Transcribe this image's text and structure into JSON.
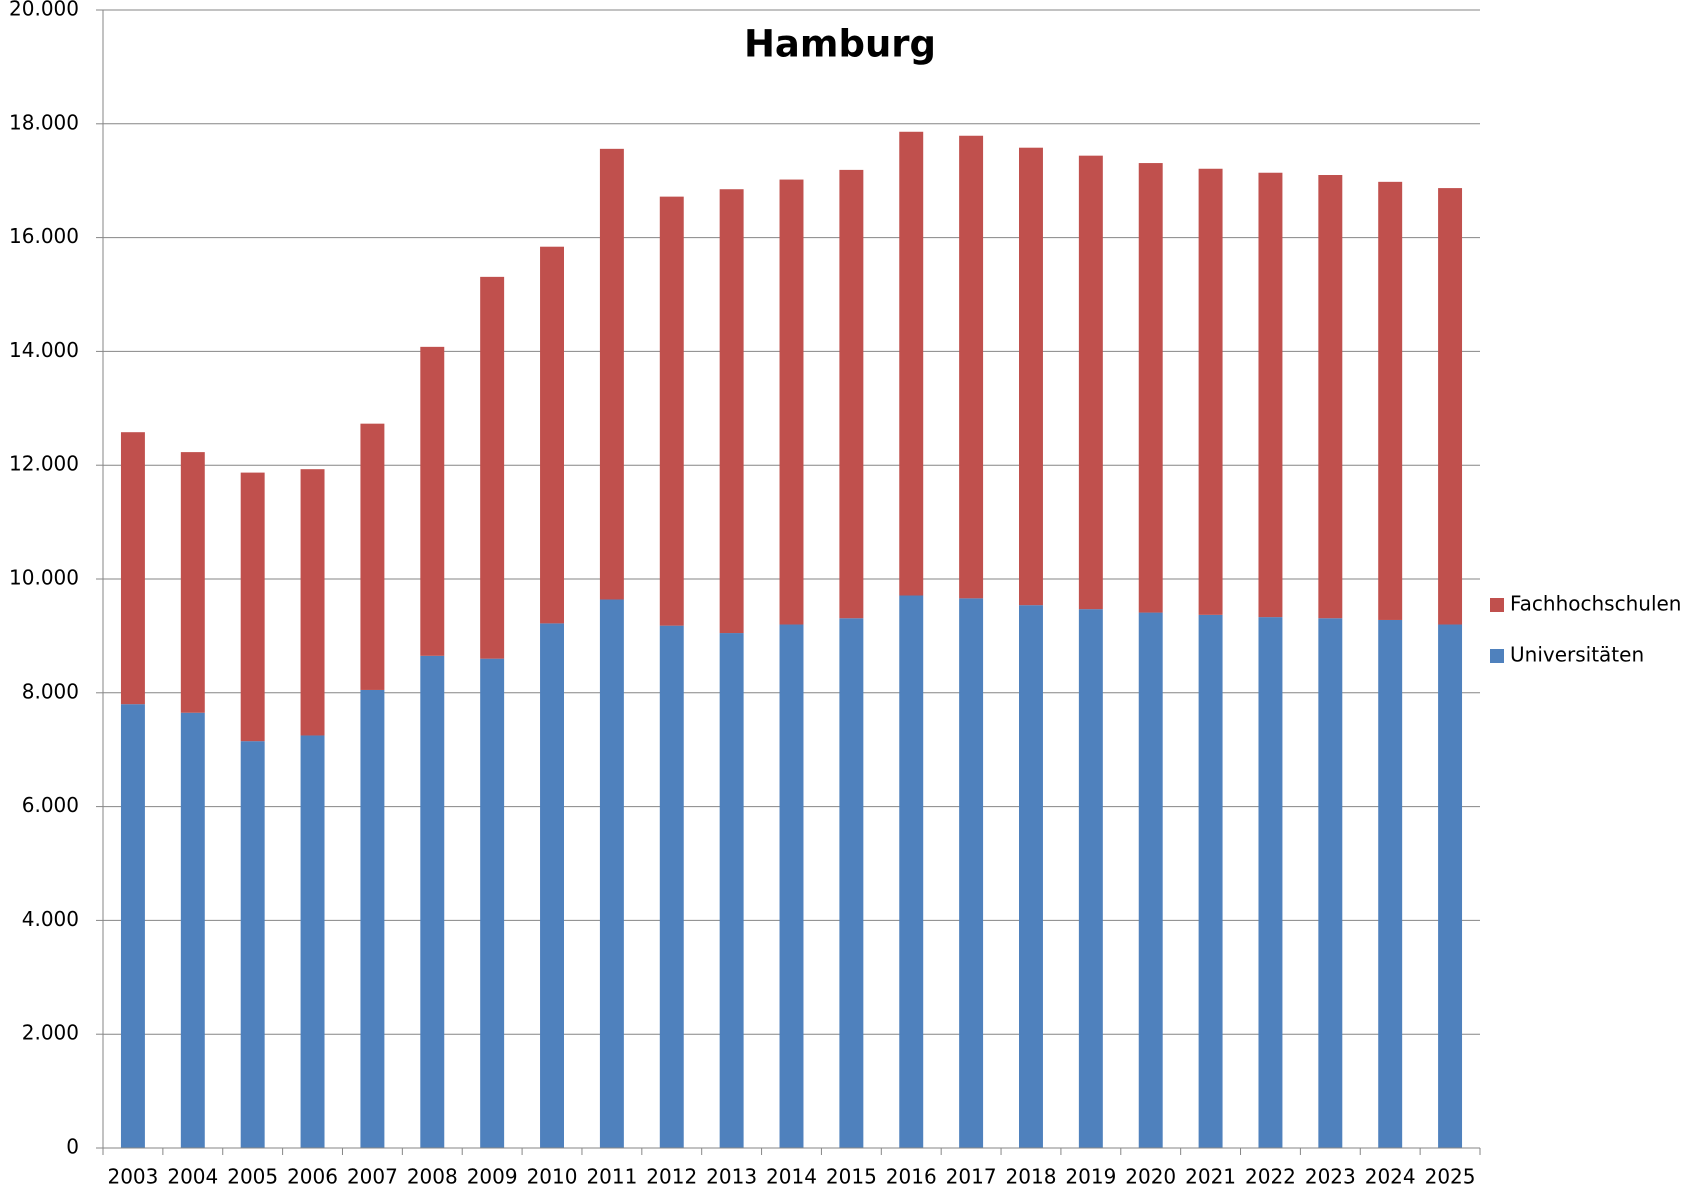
{
  "chart_data": {
    "type": "stacked_bar",
    "title": "Hamburg",
    "categories": [
      "2003",
      "2004",
      "2005",
      "2006",
      "2007",
      "2008",
      "2009",
      "2010",
      "2011",
      "2012",
      "2013",
      "2014",
      "2015",
      "2016",
      "2017",
      "2018",
      "2019",
      "2020",
      "2021",
      "2022",
      "2023",
      "2024",
      "2025"
    ],
    "series": [
      {
        "name": "Universitäten",
        "color": "#4f81bd",
        "values": [
          7800,
          7650,
          7150,
          7250,
          8050,
          8650,
          8600,
          9220,
          9640,
          9180,
          9050,
          9200,
          9310,
          9710,
          9660,
          9540,
          9470,
          9410,
          9370,
          9330,
          9310,
          9280,
          9200
        ]
      },
      {
        "name": "Fachhochschulen",
        "color": "#c0504d",
        "values": [
          4780,
          4580,
          4720,
          4680,
          4680,
          5430,
          6710,
          6620,
          7920,
          7540,
          7800,
          7820,
          7880,
          8150,
          8130,
          8040,
          7970,
          7900,
          7840,
          7810,
          7790,
          7700,
          7670
        ]
      }
    ],
    "ylim": [
      0,
      20000
    ],
    "yticks": [
      0,
      {
        "value": 2000,
        "label": "2.000"
      },
      {
        "value": 4000,
        "label": "4.000"
      },
      {
        "value": 6000,
        "label": "6.000"
      },
      {
        "value": 8000,
        "label": "8.000"
      },
      {
        "value": 10000,
        "label": "10.000"
      },
      {
        "value": 12000,
        "label": "12.000"
      },
      {
        "value": 14000,
        "label": "14.000"
      },
      {
        "value": 16000,
        "label": "16.000"
      },
      {
        "value": 18000,
        "label": "18.000"
      },
      {
        "value": 20000,
        "label": "20.000"
      }
    ],
    "grid": true,
    "legend": "right"
  }
}
